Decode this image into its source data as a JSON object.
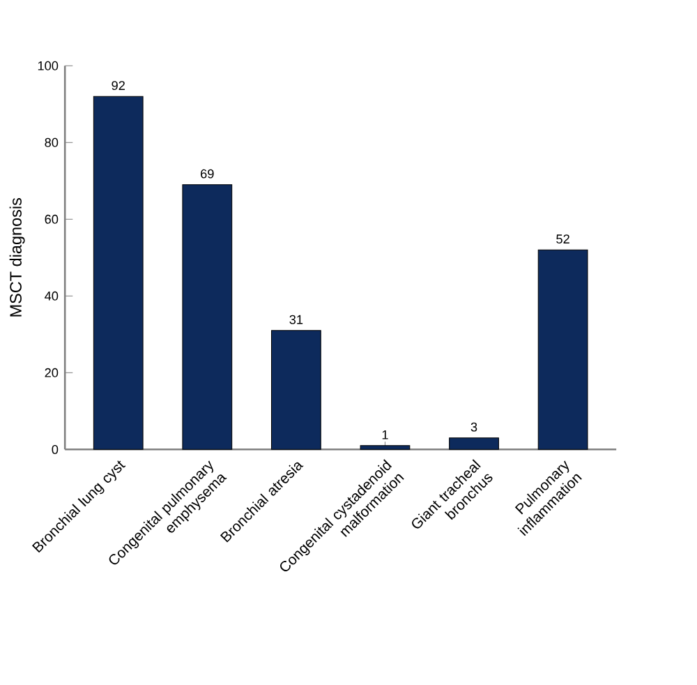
{
  "chart_data": {
    "type": "bar",
    "ylabel": "MSCT diagnosis",
    "categories": [
      "Bronchial lung cyst",
      "Congenital pulmonary emphysema",
      "Bronchial atresia",
      "Congenital cystadenoid malformation",
      "Giant tracheal bronchus",
      "Pulmonary inflammation"
    ],
    "values": [
      92,
      69,
      31,
      1,
      3,
      52
    ],
    "color": "#0d2a5c",
    "ylim": [
      0,
      100
    ],
    "yticks": [
      0,
      20,
      40,
      60,
      80,
      100
    ],
    "data_labels": true,
    "grid": false
  }
}
